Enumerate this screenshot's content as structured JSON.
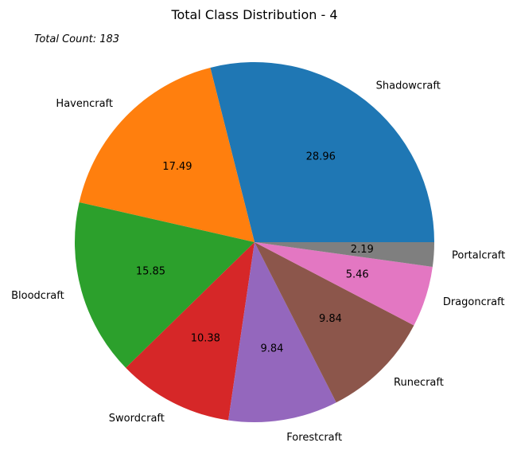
{
  "chart_data": {
    "type": "pie",
    "title": "Total Class Distribution - 4",
    "annotation": "Total Count: 183",
    "start_angle_deg": 0,
    "direction": "counterclockwise",
    "slices": [
      {
        "label": "Shadowcraft",
        "value": 28.96,
        "pct_text": "28.96",
        "color": "#1f77b4"
      },
      {
        "label": "Havencraft",
        "value": 17.49,
        "pct_text": "17.49",
        "color": "#ff7f0e"
      },
      {
        "label": "Bloodcraft",
        "value": 15.85,
        "pct_text": "15.85",
        "color": "#2ca02c"
      },
      {
        "label": "Swordcraft",
        "value": 10.38,
        "pct_text": "10.38",
        "color": "#d62728"
      },
      {
        "label": "Forestcraft",
        "value": 9.84,
        "pct_text": "9.84",
        "color": "#9467bd"
      },
      {
        "label": "Runecraft",
        "value": 9.84,
        "pct_text": "9.84",
        "color": "#8c564b"
      },
      {
        "label": "Dragoncraft",
        "value": 5.46,
        "pct_text": "5.46",
        "color": "#e377c2"
      },
      {
        "label": "Portalcraft",
        "value": 2.19,
        "pct_text": "2.19",
        "color": "#7f7f7f"
      }
    ]
  }
}
